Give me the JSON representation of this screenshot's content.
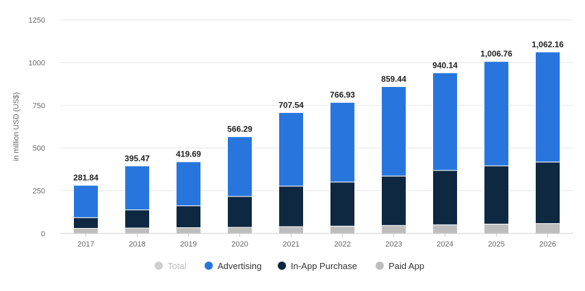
{
  "chart_data": {
    "type": "bar",
    "stacked": true,
    "ylabel": "in million USD (US$)",
    "ylim": [
      0,
      1250
    ],
    "yticks": [
      0,
      250,
      500,
      750,
      1000,
      1250
    ],
    "grid": true,
    "legend_position": "bottom",
    "categories": [
      "2017",
      "2018",
      "2019",
      "2020",
      "2021",
      "2022",
      "2023",
      "2024",
      "2025",
      "2026"
    ],
    "totals": [
      281.84,
      395.47,
      419.69,
      566.29,
      707.54,
      766.93,
      859.44,
      940.14,
      1006.76,
      1062.16
    ],
    "total_labels": [
      "281.84",
      "395.47",
      "419.69",
      "566.29",
      "707.54",
      "766.93",
      "859.44",
      "940.14",
      "1,006.76",
      "1,062.16"
    ],
    "series": [
      {
        "name": "Paid App",
        "color": "#bdbdbd",
        "values": [
          30,
          32,
          34,
          36,
          40,
          43,
          47,
          51,
          55,
          58
        ]
      },
      {
        "name": "In-App Purchase",
        "color": "#0e2841",
        "values": [
          63,
          106,
          128,
          181,
          237,
          258,
          289,
          318,
          341,
          360
        ]
      },
      {
        "name": "Advertising",
        "color": "#2876dd",
        "values": [
          188.84,
          257.47,
          257.69,
          349.29,
          430.54,
          465.93,
          523.44,
          571.14,
          610.76,
          644.16
        ]
      }
    ],
    "legend": [
      {
        "name": "Total",
        "color": "#cfcfcf",
        "muted": true
      },
      {
        "name": "Advertising",
        "color": "#2876dd",
        "muted": false
      },
      {
        "name": "In-App Purchase",
        "color": "#0e2841",
        "muted": false
      },
      {
        "name": "Paid App",
        "color": "#bdbdbd",
        "muted": false
      }
    ]
  }
}
